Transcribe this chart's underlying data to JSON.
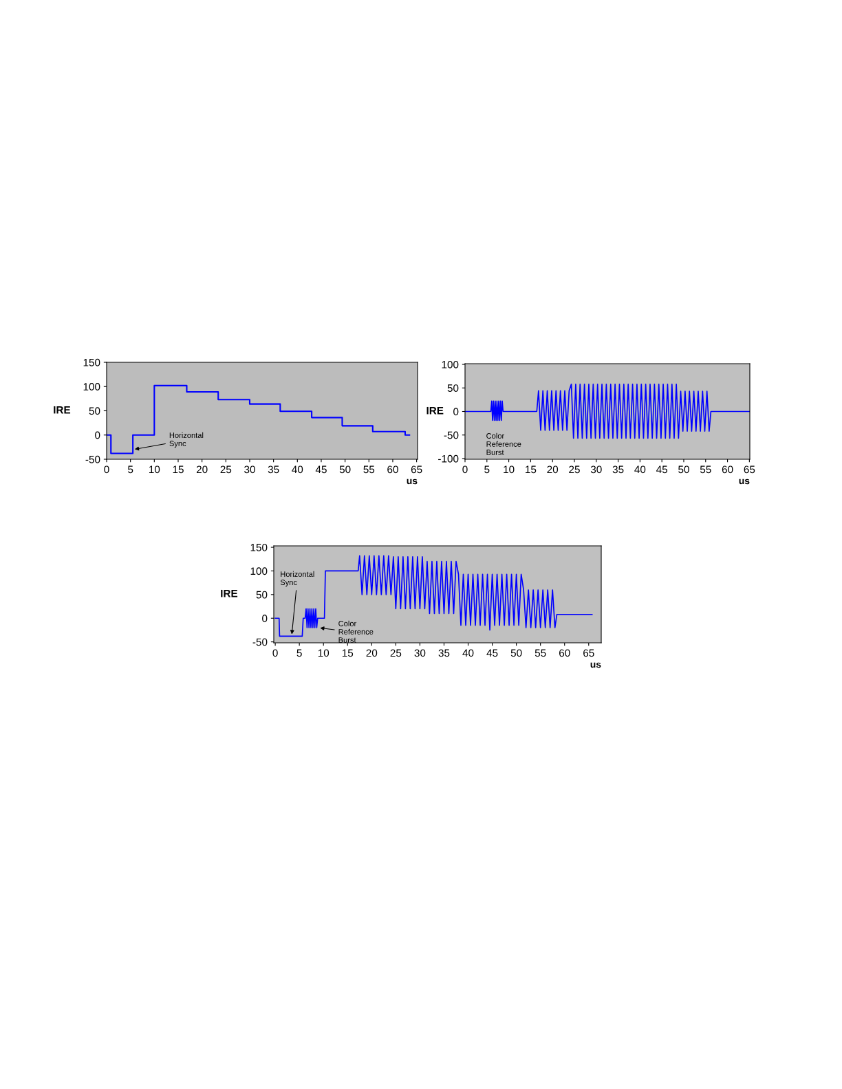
{
  "chart_data": [
    {
      "type": "step",
      "xlabel": "us",
      "ylabel": "IRE",
      "xlim": [
        0,
        65.2
      ],
      "ylim": [
        -50,
        150
      ],
      "xticks": [
        0,
        5,
        10,
        15,
        20,
        25,
        30,
        35,
        40,
        45,
        50,
        55,
        60,
        65
      ],
      "yticks": [
        -50,
        0,
        50,
        100,
        150
      ],
      "series": [
        {
          "color": "#0000ff",
          "x": [
            0,
            0.9,
            5.5,
            10,
            16.8,
            23.4,
            30,
            36.4,
            43,
            49.4,
            55.8,
            62.6,
            63.5
          ],
          "values": [
            0,
            -38,
            0,
            102,
            89,
            73,
            64,
            49,
            36,
            19,
            7,
            0,
            0
          ]
        }
      ],
      "annotations": [
        {
          "text": "Horizontal\nSync",
          "x": 5.5,
          "y": -30
        }
      ]
    },
    {
      "type": "line",
      "xlabel": "us",
      "ylabel": "IRE",
      "xlim": [
        0,
        65.1
      ],
      "ylim": [
        -101.5,
        101.5
      ],
      "xticks": [
        0,
        5,
        10,
        15,
        20,
        25,
        30,
        35,
        40,
        45,
        50,
        55,
        60,
        65
      ],
      "yticks": [
        -100,
        -50,
        0,
        50,
        100
      ],
      "series": [
        {
          "color": "#0000ff",
          "x": [
            0,
            5.9,
            6.1,
            6.3,
            6.5,
            6.7,
            6.9,
            7.1,
            7.3,
            7.5,
            7.7,
            7.9,
            8.1,
            8.3,
            8.5,
            8.7,
            16.4,
            16.8,
            17.3,
            17.8,
            18.3,
            18.8,
            19.3,
            19.8,
            20.3,
            20.8,
            21.3,
            21.8,
            22.3,
            22.8,
            23.3,
            23.8,
            24.3,
            24.8,
            25.3,
            25.8,
            26.3,
            26.8,
            27.3,
            27.8,
            28.3,
            28.8,
            29.3,
            29.8,
            30.3,
            30.8,
            31.3,
            31.8,
            32.3,
            32.8,
            33.3,
            33.8,
            34.3,
            34.8,
            35.3,
            35.8,
            36.3,
            36.8,
            37.3,
            37.8,
            38.3,
            38.8,
            39.3,
            39.8,
            40.3,
            40.8,
            41.3,
            41.8,
            42.3,
            42.8,
            43.3,
            43.8,
            44.3,
            44.8,
            45.3,
            45.8,
            46.3,
            46.8,
            47.3,
            47.8,
            48.3,
            48.8,
            49.3,
            49.8,
            50.3,
            50.8,
            51.3,
            51.8,
            52.3,
            52.8,
            53.3,
            53.8,
            54.3,
            54.8,
            55.3,
            55.8,
            56.2,
            65.1
          ],
          "values": [
            0,
            0,
            22,
            -19,
            22,
            -19,
            22,
            -19,
            22,
            -19,
            22,
            -19,
            22,
            -19,
            22,
            0,
            0,
            44,
            -40,
            44,
            -40,
            44,
            -40,
            44,
            -40,
            44,
            -40,
            44,
            -40,
            44,
            -40,
            44,
            58,
            -57,
            58,
            -57,
            58,
            -57,
            58,
            -57,
            58,
            -57,
            58,
            -57,
            58,
            -57,
            58,
            -57,
            58,
            -57,
            58,
            -57,
            58,
            -57,
            58,
            -57,
            58,
            -57,
            58,
            -57,
            58,
            -57,
            58,
            -57,
            58,
            -57,
            58,
            -57,
            58,
            -57,
            58,
            -57,
            58,
            -57,
            58,
            -57,
            58,
            -57,
            58,
            -57,
            58,
            -57,
            43,
            -42,
            43,
            -42,
            43,
            -42,
            43,
            -42,
            43,
            -42,
            43,
            -42,
            43,
            -42,
            0,
            0
          ]
        }
      ],
      "annotations": [
        {
          "text": "Color\nReference\nBurst",
          "x": 7,
          "y": -20
        }
      ]
    },
    {
      "type": "line",
      "xlabel": "us",
      "ylabel": "IRE",
      "xlim": [
        -0.3,
        67.6
      ],
      "ylim": [
        -52,
        153
      ],
      "xticks": [
        0,
        5,
        10,
        15,
        20,
        25,
        30,
        35,
        40,
        45,
        50,
        55,
        60,
        65
      ],
      "yticks": [
        -50,
        0,
        50,
        100,
        150
      ],
      "series": [
        {
          "color": "#0000ff",
          "x": [
            0,
            0.8,
            0.9,
            5.6,
            5.8,
            6.2,
            6.4,
            6.6,
            6.8,
            7.0,
            7.2,
            7.4,
            7.6,
            7.8,
            8.0,
            8.2,
            8.4,
            8.6,
            8.8,
            10.2,
            10.4,
            17.2,
            17.5,
            18.0,
            18.5,
            19.0,
            19.5,
            20.0,
            20.5,
            21.0,
            21.5,
            22.0,
            22.5,
            23.0,
            23.5,
            24.0,
            24.5,
            25.0,
            25.5,
            26.0,
            26.5,
            27.0,
            27.5,
            28.0,
            28.5,
            29.0,
            29.5,
            30.0,
            30.5,
            31.0,
            31.5,
            32.0,
            32.5,
            33.0,
            33.5,
            34.0,
            34.5,
            35.0,
            35.5,
            36.0,
            36.5,
            37.0,
            37.5,
            38.0,
            38.5,
            39.0,
            39.5,
            40.0,
            40.5,
            41.0,
            41.5,
            42.0,
            42.5,
            43.0,
            43.5,
            44.0,
            44.5,
            45.0,
            45.5,
            46.0,
            46.5,
            47.0,
            47.5,
            48.0,
            48.5,
            49.0,
            49.5,
            50.0,
            50.5,
            51.0,
            51.5,
            52.0,
            52.5,
            53.0,
            53.5,
            54.0,
            54.5,
            55.0,
            55.5,
            56.0,
            56.5,
            57.0,
            57.5,
            58.0,
            58.4,
            65.7
          ],
          "values": [
            0,
            0,
            -38,
            -38,
            0,
            0,
            20,
            -20,
            20,
            -20,
            20,
            -20,
            20,
            -20,
            20,
            -20,
            20,
            -20,
            0,
            0,
            100,
            100,
            132,
            50,
            132,
            50,
            132,
            50,
            132,
            50,
            132,
            50,
            132,
            50,
            132,
            50,
            130,
            20,
            130,
            20,
            130,
            20,
            130,
            20,
            130,
            20,
            130,
            20,
            130,
            20,
            120,
            10,
            120,
            10,
            120,
            10,
            120,
            10,
            120,
            10,
            120,
            10,
            120,
            93,
            -15,
            93,
            -15,
            93,
            -15,
            93,
            -15,
            93,
            -15,
            93,
            -15,
            93,
            -25,
            93,
            -15,
            93,
            -15,
            93,
            -15,
            93,
            -15,
            93,
            -15,
            93,
            -15,
            93,
            60,
            -20,
            60,
            -20,
            60,
            -20,
            60,
            -20,
            60,
            -20,
            60,
            -20,
            60,
            -20,
            8,
            8
          ]
        }
      ],
      "annotations": [
        {
          "text": "Horizontal\nSync",
          "x": 3.4,
          "y": -38
        },
        {
          "text": "Color\nReference\nBurst",
          "x": 8.9,
          "y": -20
        }
      ]
    }
  ]
}
